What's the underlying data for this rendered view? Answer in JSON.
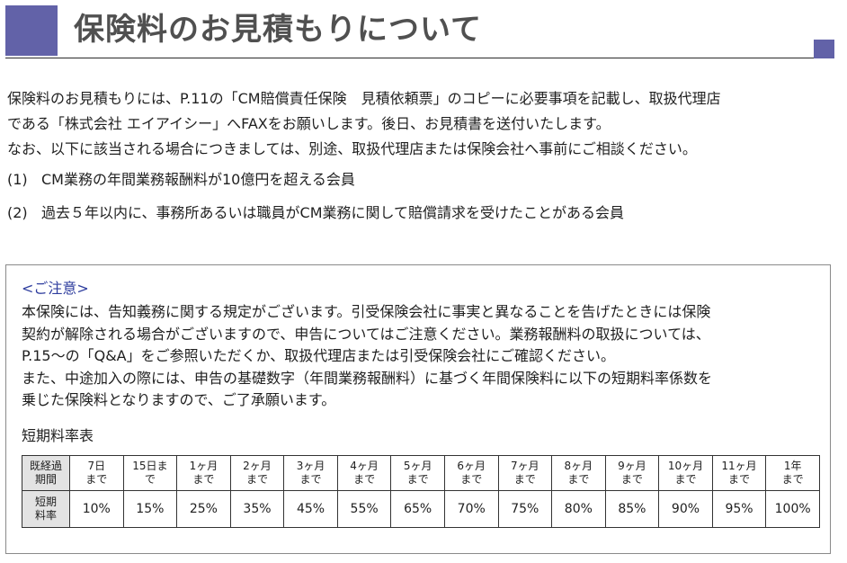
{
  "header": {
    "title": "保険料のお見積もりについて"
  },
  "intro": {
    "lines": [
      "保険料のお見積もりには、P.11の「CM賠償責任保険　見積依頼票」のコピーに必要事項を記載し、取扱代理店",
      "である「株式会社 エイアイシー」へFAXをお願いします。後日、お見積書を送付いたします。",
      "なお、以下に該当される場合につきましては、別途、取扱代理店または保険会社へ事前にご相談ください。"
    ],
    "conditions": [
      {
        "num": "(1)",
        "text": "CM業務の年間業務報酬料が10億円を超える会員"
      },
      {
        "num": "(2)",
        "text": "過去５年以内に、事務所あるいは職員がCM業務に関して賠償請求を受けたことがある会員"
      }
    ]
  },
  "notice": {
    "title": "<ご注意>",
    "lines": [
      "本保険には、告知義務に関する規定がございます。引受保険会社に事実と異なることを告げたときには保険",
      "契約が解除される場合がございますので、申告についてはご注意ください。業務報酬料の取扱については、",
      "P.15～の「Q&A」をご参照いただくか、取扱代理店または引受保険会社にご確認ください。",
      "また、中途加入の際には、申告の基礎数字（年間業務報酬料）に基づく年間保険料に以下の短期料率係数を",
      "乗じた保険料となりますので、ご了承願います。"
    ],
    "table_caption": "短期料率表",
    "table": {
      "header_label": "既経過\n期間",
      "periods": [
        "7日\nまで",
        "15日ま\nで",
        "1ヶ月\nまで",
        "2ヶ月\nまで",
        "3ヶ月\nまで",
        "4ヶ月\nまで",
        "5ヶ月\nまで",
        "6ヶ月\nまで",
        "7ヶ月\nまで",
        "8ヶ月\nまで",
        "9ヶ月\nまで",
        "10ヶ月\nまで",
        "11ヶ月\nまで",
        "1年\nまで"
      ],
      "row_label": "短期\n料率",
      "rates": [
        "10%",
        "15%",
        "25%",
        "35%",
        "45%",
        "55%",
        "65%",
        "70%",
        "75%",
        "80%",
        "85%",
        "90%",
        "95%",
        "100%"
      ]
    }
  },
  "colors": {
    "accent": "#6262a8",
    "notice_title": "#2e3d9e",
    "table_label_bg": "#e3e3e3"
  }
}
